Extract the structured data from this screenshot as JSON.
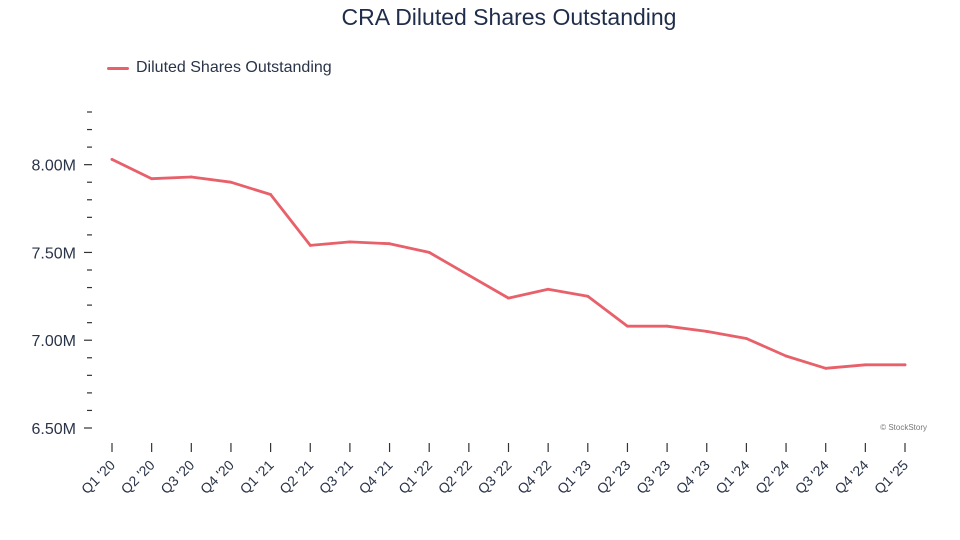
{
  "chart_data": {
    "type": "line",
    "title": "CRA Diluted Shares Outstanding",
    "xlabel": "",
    "ylabel": "",
    "categories": [
      "Q1 '20",
      "Q2 '20",
      "Q3 '20",
      "Q4 '20",
      "Q1 '21",
      "Q2 '21",
      "Q3 '21",
      "Q4 '21",
      "Q1 '22",
      "Q2 '22",
      "Q3 '22",
      "Q4 '22",
      "Q1 '23",
      "Q2 '23",
      "Q3 '23",
      "Q4 '23",
      "Q1 '24",
      "Q2 '24",
      "Q3 '24",
      "Q4 '24",
      "Q1 '25"
    ],
    "series": [
      {
        "name": "Diluted Shares Outstanding",
        "color": "#e8616a",
        "values": [
          8.03,
          7.92,
          7.93,
          7.9,
          7.83,
          7.54,
          7.56,
          7.55,
          7.5,
          7.37,
          7.24,
          7.29,
          7.25,
          7.08,
          7.08,
          7.05,
          7.01,
          6.91,
          6.84,
          6.86,
          6.86
        ]
      }
    ],
    "ylim": [
      6.5,
      8.3
    ],
    "y_ticks": [
      {
        "value": 6.5,
        "label": "6.50M"
      },
      {
        "value": 7.0,
        "label": "7.00M"
      },
      {
        "value": 7.5,
        "label": "7.50M"
      },
      {
        "value": 8.0,
        "label": "8.00M"
      }
    ],
    "y_minor_step": 0.1,
    "y_unit": "M",
    "grid": false,
    "legend_position": "top-left"
  },
  "watermark": "© StockStory"
}
